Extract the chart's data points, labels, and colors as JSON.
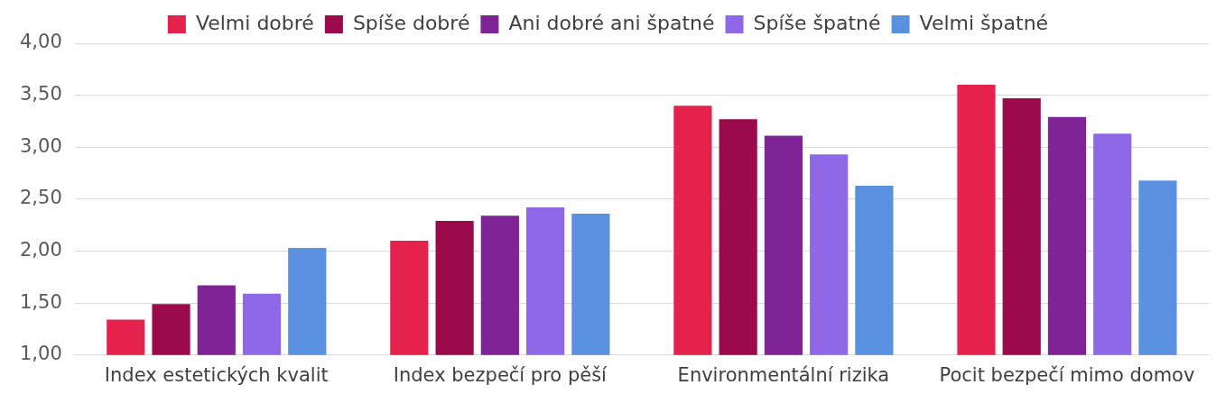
{
  "chart_data": {
    "type": "bar",
    "categories": [
      "Index estetických kvalit",
      "Index bezpečí pro pěší",
      "Environmentální rizika",
      "Pocit bezpečí mimo domov"
    ],
    "series": [
      {
        "name": "Velmi dobré",
        "color": "#e5224c",
        "values": [
          1.34,
          2.1,
          3.4,
          3.6
        ]
      },
      {
        "name": "Spíše dobré",
        "color": "#9b0a4a",
        "values": [
          1.49,
          2.29,
          3.27,
          3.47
        ]
      },
      {
        "name": "Ani dobré ani špatné",
        "color": "#7f2496",
        "values": [
          1.67,
          2.34,
          3.11,
          3.29
        ]
      },
      {
        "name": "Spíše špatné",
        "color": "#8f68e8",
        "values": [
          1.59,
          2.42,
          2.93,
          3.13
        ]
      },
      {
        "name": "Velmi špatné",
        "color": "#5a90e0",
        "values": [
          2.03,
          2.36,
          2.63,
          2.68
        ]
      }
    ],
    "ylim": [
      1,
      4
    ],
    "yticks": [
      {
        "value": 1,
        "label": "1,00"
      },
      {
        "value": 1.5,
        "label": "1,50"
      },
      {
        "value": 2,
        "label": "2,00"
      },
      {
        "value": 2.5,
        "label": "2,50"
      },
      {
        "value": 3,
        "label": "3,00"
      },
      {
        "value": 3.5,
        "label": "3,50"
      },
      {
        "value": 4,
        "label": "4,00"
      }
    ],
    "grid": "y",
    "legend": "top"
  }
}
